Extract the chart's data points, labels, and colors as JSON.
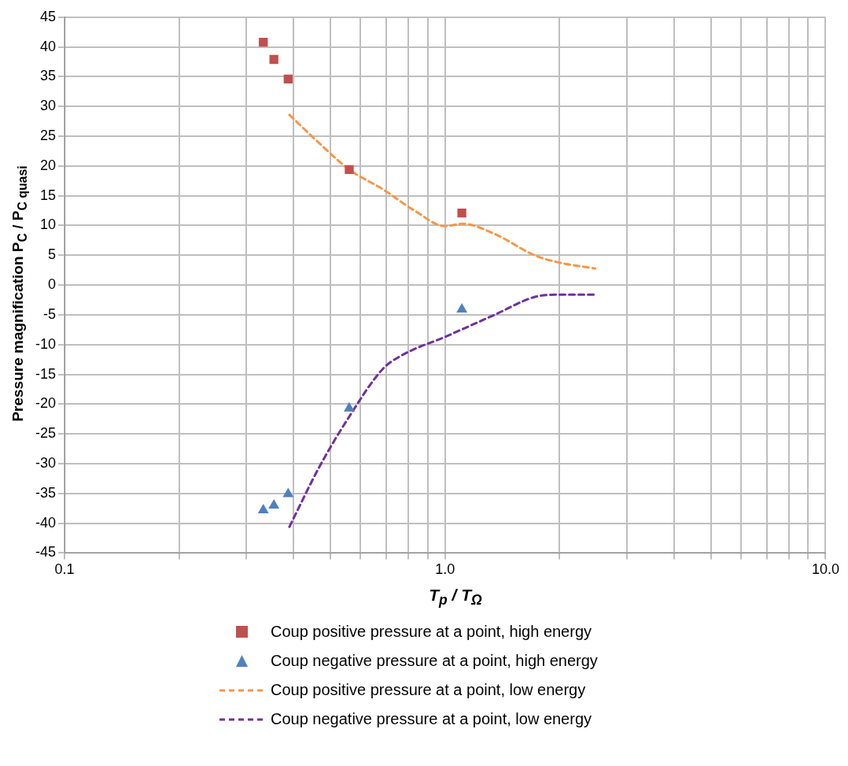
{
  "chart_data": {
    "type": "scatter",
    "xlabel": "T$_{p}$ / T$_{Ω}$",
    "ylabel": "Pressure magnification P$_{C}$ / P$_{C quasi}$",
    "log": "x",
    "xlim": [
      0.1,
      10
    ],
    "xticks": [
      {
        "value": 0.1,
        "label": "0.1"
      },
      {
        "value": 0.2,
        "label": null
      },
      {
        "value": 0.3,
        "label": null
      },
      {
        "value": 0.4,
        "label": null
      },
      {
        "value": 0.5,
        "label": null
      },
      {
        "value": 0.6,
        "label": null
      },
      {
        "value": 0.7,
        "label": null
      },
      {
        "value": 0.8,
        "label": null
      },
      {
        "value": 0.9,
        "label": null
      },
      {
        "value": 1,
        "label": "1.0"
      },
      {
        "value": 2,
        "label": null
      },
      {
        "value": 3,
        "label": null
      },
      {
        "value": 4,
        "label": null
      },
      {
        "value": 5,
        "label": null
      },
      {
        "value": 6,
        "label": null
      },
      {
        "value": 7,
        "label": null
      },
      {
        "value": 8,
        "label": null
      },
      {
        "value": 9,
        "label": null
      },
      {
        "value": 10,
        "label": "10.0"
      }
    ],
    "ylim": [
      -45,
      45
    ],
    "yticks": [
      -45,
      -40,
      -35,
      -30,
      -25,
      -20,
      -15,
      -10,
      -5,
      0,
      5,
      10,
      15,
      20,
      25,
      30,
      35,
      40,
      45
    ],
    "grid": true,
    "legend": "bottom",
    "series": [
      {
        "name": "Coup positive pressure at a point, high energy",
        "type": "scatter",
        "marker": "square",
        "color": "#c0504d",
        "x": [
          0.333,
          0.355,
          0.387,
          0.56,
          1.107
        ],
        "values": [
          40.8,
          37.9,
          34.6,
          19.4,
          12.1
        ]
      },
      {
        "name": "Coup negative pressure at a point, high energy",
        "type": "scatter",
        "marker": "triangle",
        "color": "#4f81bd",
        "x": [
          0.333,
          0.355,
          0.387,
          0.56,
          1.107
        ],
        "values": [
          -37.8,
          -37.0,
          -35.1,
          -20.7,
          -4.1
        ]
      },
      {
        "name": "Coup positive pressure at a point, low energy",
        "type": "line",
        "marker": "none",
        "line_style": "dashed",
        "color": "#f79646",
        "x": [
          0.39,
          0.466,
          0.56,
          0.686,
          0.832,
          1.0,
          1.113,
          1.349,
          1.72,
          1.99,
          2.48
        ],
        "values": [
          28.6,
          23.9,
          19.4,
          16.1,
          12.5,
          9.9,
          10.3,
          8.6,
          5.0,
          3.8,
          2.8
        ]
      },
      {
        "name": "Coup negative pressure at a point, low energy",
        "type": "line",
        "marker": "none",
        "line_style": "dashed",
        "color": "#7030a0",
        "x": [
          0.39,
          0.466,
          0.56,
          0.686,
          0.77,
          1.0,
          1.349,
          1.72,
          1.99,
          2.48
        ],
        "values": [
          -40.6,
          -30.7,
          -22.1,
          -14.1,
          -11.8,
          -8.7,
          -5.0,
          -2.0,
          -1.6,
          -1.6
        ]
      }
    ]
  }
}
